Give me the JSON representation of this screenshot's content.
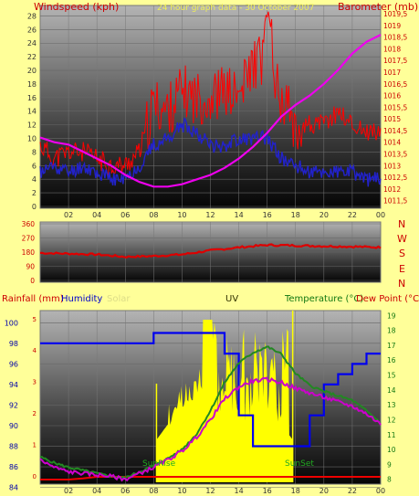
{
  "top_panel": {
    "left_axis_title": "Windspeed (kph)",
    "center_title": "24 hour graph data - 30 October 2007",
    "right_axis_title": "Barometer (mb)"
  },
  "mid_panel": {
    "direction_letters": [
      "N",
      "W",
      "S",
      "E",
      "N"
    ]
  },
  "bottom_panel": {
    "legend": {
      "rainfall": "Rainfall (mm)",
      "humidity": "Humidity",
      "solar": "Solar",
      "uv": "UV",
      "temperature": "Temperature (°C)",
      "dewpoint": "Dew Point (°C)"
    },
    "sunrise": "SunRise",
    "sunset": "SunSet"
  },
  "colors": {
    "background": "#ffff99",
    "wind_gust": "#ff0000",
    "wind_avg": "#2222cc",
    "barometer": "#ee00ee",
    "direction": "#dd0000",
    "humidity": "#0000ee",
    "solar": "#ffff00",
    "temperature": "#228822",
    "dewpoint": "#cc00cc",
    "rainfall": "#ee0000",
    "axis_text": "#cc0000"
  },
  "chart_data": [
    {
      "type": "line",
      "name": "wind-barometer",
      "x_ticks": [
        "02",
        "04",
        "06",
        "08",
        "10",
        "12",
        "14",
        "16",
        "18",
        "20",
        "22",
        "00"
      ],
      "left_ticks": [
        "0",
        "2",
        "4",
        "6",
        "8",
        "10",
        "12",
        "14",
        "16",
        "18",
        "20",
        "22",
        "24",
        "26",
        "28"
      ],
      "right_ticks": [
        "1011,5",
        "1012",
        "1012,5",
        "1013",
        "1013,5",
        "1014",
        "1014,5",
        "1015",
        "1015,5",
        "1016",
        "1016,5",
        "1017",
        "1017,5",
        "1018",
        "1018,5",
        "1019",
        "1019,5"
      ],
      "ylim_left": [
        0,
        29
      ],
      "ylim_right": [
        1011.25,
        1019.7
      ],
      "hours": [
        0,
        1,
        2,
        3,
        4,
        5,
        6,
        7,
        8,
        9,
        10,
        11,
        12,
        13,
        14,
        15,
        16,
        17,
        18,
        19,
        20,
        21,
        22,
        23,
        24
      ],
      "series": [
        {
          "name": "Wind gust",
          "axis": "left",
          "values": [
            9,
            7,
            8,
            8,
            7,
            6,
            6,
            8,
            15,
            14,
            17,
            16,
            16,
            17,
            16,
            21,
            22,
            16,
            12,
            12,
            12,
            14,
            12,
            11,
            11
          ]
        },
        {
          "name": "Wind speed",
          "axis": "left",
          "values": [
            5,
            6,
            5,
            6,
            5,
            4,
            4,
            6,
            9,
            10,
            12,
            11,
            9,
            9,
            10,
            10,
            10,
            7,
            6,
            5,
            5,
            5,
            5,
            4,
            4
          ]
        },
        {
          "name": "Barometer",
          "axis": "right",
          "values": [
            1014.2,
            1014.0,
            1013.9,
            1013.6,
            1013.3,
            1013.0,
            1012.6,
            1012.3,
            1012.1,
            1012.1,
            1012.2,
            1012.4,
            1012.6,
            1012.9,
            1013.3,
            1013.8,
            1014.4,
            1015.1,
            1015.6,
            1016.0,
            1016.5,
            1017.1,
            1017.8,
            1018.3,
            1018.6
          ]
        }
      ]
    },
    {
      "type": "line",
      "name": "wind-direction",
      "left_ticks": [
        "0",
        "90",
        "180",
        "270",
        "360"
      ],
      "ylim": [
        0,
        360
      ],
      "hours": [
        0,
        2,
        4,
        6,
        8,
        10,
        12,
        14,
        16,
        18,
        20,
        22,
        24
      ],
      "series": [
        {
          "name": "Direction",
          "values": [
            175,
            170,
            165,
            150,
            155,
            165,
            190,
            210,
            225,
            222,
            218,
            215,
            210
          ]
        }
      ]
    },
    {
      "type": "line",
      "name": "rain-humidity-temp",
      "x_ticks": [
        "02",
        "04",
        "06",
        "08",
        "10",
        "12",
        "14",
        "16",
        "18",
        "20",
        "22",
        "00"
      ],
      "left_ticks": [
        "84",
        "86",
        "88",
        "90",
        "92",
        "94",
        "96",
        "98",
        "100"
      ],
      "left_extra_ticks": [
        "0",
        "1",
        "2",
        "3",
        "4",
        "5"
      ],
      "right_ticks": [
        "8",
        "9",
        "10",
        "11",
        "12",
        "13",
        "14",
        "15",
        "16",
        "17",
        "18",
        "19"
      ],
      "ylim_humidity": [
        84.5,
        101
      ],
      "ylim_temp": [
        7.8,
        19.2
      ],
      "hours": [
        0,
        1,
        2,
        3,
        4,
        5,
        6,
        7,
        8,
        9,
        10,
        11,
        12,
        13,
        14,
        15,
        16,
        17,
        18,
        19,
        20,
        21,
        22,
        23,
        24
      ],
      "series": [
        {
          "name": "Humidity",
          "values": [
            98,
            98,
            98,
            98,
            98,
            98,
            98,
            98,
            99,
            99,
            99,
            99,
            99,
            97,
            91,
            88,
            88,
            88,
            88,
            91,
            94,
            95,
            96,
            97,
            97
          ]
        },
        {
          "name": "Temperature",
          "values": [
            9.5,
            9.1,
            8.8,
            8.6,
            8.4,
            8.2,
            8.1,
            8.5,
            8.9,
            9.4,
            10.0,
            11.0,
            12.6,
            14.5,
            15.8,
            16.5,
            16.9,
            16.4,
            15.1,
            14.3,
            13.9,
            13.6,
            13.3,
            12.6,
            11.8
          ]
        },
        {
          "name": "Dew Point",
          "values": [
            9.3,
            8.8,
            8.5,
            8.4,
            8.3,
            8.2,
            8.0,
            8.4,
            8.8,
            9.3,
            9.9,
            10.8,
            12.0,
            13.4,
            14.2,
            14.6,
            14.7,
            14.5,
            14.1,
            13.8,
            13.5,
            13.2,
            12.9,
            12.4,
            11.7
          ]
        },
        {
          "name": "Rainfall",
          "values": [
            0,
            0,
            0,
            0.02,
            0.05,
            0.05,
            0.05,
            0.05,
            0.05,
            0.05,
            0.05,
            0.05,
            0.05,
            0.05,
            0.05,
            0.05,
            0.05,
            0.05,
            0.05,
            0.05,
            0.05,
            0.05,
            0.05,
            0.05,
            0.05
          ]
        }
      ],
      "uv_window_hours": [
        8.2,
        17.8
      ]
    }
  ]
}
